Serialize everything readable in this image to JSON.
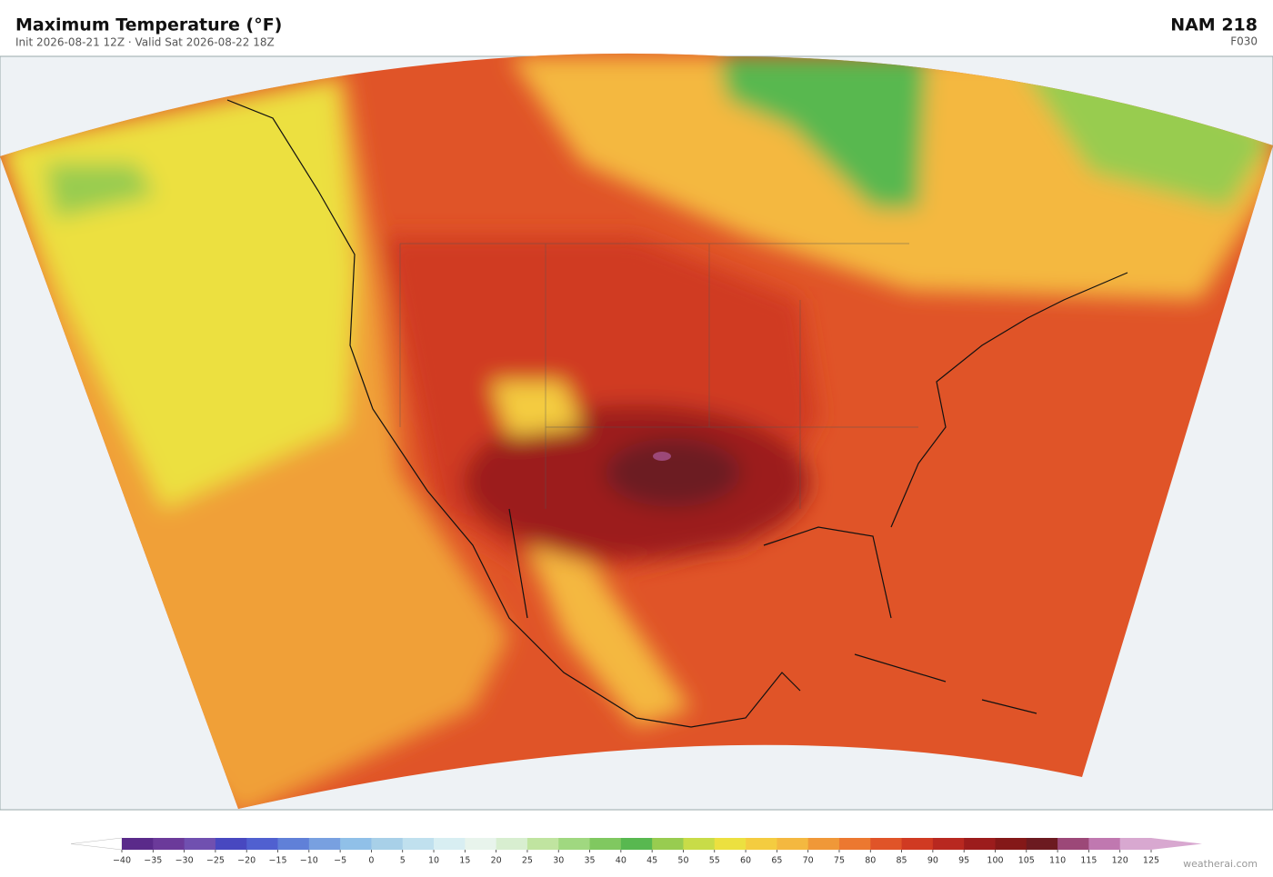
{
  "header": {
    "title": "Maximum Temperature  (°F)",
    "subtitle": "Init 2026-08-21 12Z  ·  Valid Sat 2026-08-22 18Z",
    "model": "NAM  218",
    "forecast_hour": "F030"
  },
  "colorbar": {
    "range": [
      -40,
      125
    ],
    "ticks": [
      {
        "value": -40,
        "label": "−40"
      },
      {
        "value": -35,
        "label": "−35"
      },
      {
        "value": -30,
        "label": "−30"
      },
      {
        "value": -25,
        "label": "−25"
      },
      {
        "value": -20,
        "label": "−20"
      },
      {
        "value": -15,
        "label": "−15"
      },
      {
        "value": -10,
        "label": "−10"
      },
      {
        "value": -5,
        "label": "−5"
      },
      0,
      5,
      10,
      15,
      20,
      25,
      30,
      35,
      40,
      45,
      50,
      55,
      60,
      65,
      70,
      75,
      80,
      85,
      90,
      95,
      100,
      105,
      110,
      115,
      120,
      125
    ],
    "colors": [
      "#5a2a8a",
      "#6b3a9a",
      "#7050b0",
      "#4848c0",
      "#5060d0",
      "#6080d8",
      "#78a0e0",
      "#90c0e8",
      "#a8d0e8",
      "#c0e0ee",
      "#d8eef2",
      "#e8f4ec",
      "#d8eed0",
      "#c0e4a0",
      "#a0d880",
      "#80c860",
      "#58b850",
      "#98cc50",
      "#c8dc48",
      "#ece040",
      "#f4cc40",
      "#f4b840",
      "#f09838",
      "#ec7830",
      "#e05428",
      "#d03a22",
      "#b82820",
      "#9c1c1c",
      "#841818",
      "#6c1a20",
      "#9c4878",
      "#c078b0",
      "#d8a8d0"
    ],
    "under_color": "#ffffff",
    "over_color": "#d8a8d0"
  },
  "watermark": "weatherai.com"
}
